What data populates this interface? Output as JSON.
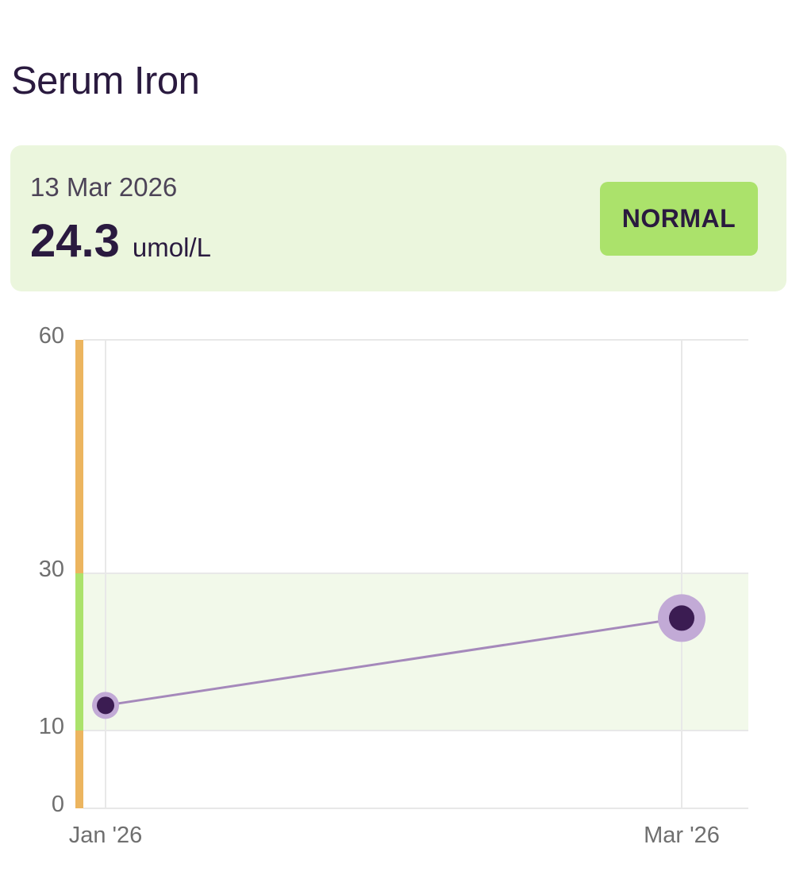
{
  "header": {
    "title": "Serum Iron"
  },
  "latest": {
    "date": "13 Mar 2026",
    "value": "24.3",
    "unit": "umol/L",
    "status": "NORMAL"
  },
  "colors": {
    "normal_band": "#f2f9ea",
    "normal_bar": "#abe26b",
    "out_of_range_bar": "#ecb55f",
    "line": "#a589bb",
    "point": "#3b1c52",
    "point_halo": "#c2aad6",
    "grid": "#e8e8e8"
  },
  "chart_data": {
    "type": "line",
    "y_ticks": [
      "60",
      "30",
      "10",
      "0"
    ],
    "x_ticks": [
      "Jan '26",
      "Mar '26"
    ],
    "ylim": [
      0,
      60
    ],
    "reference_range": [
      10,
      30
    ],
    "grid": true,
    "series": [
      {
        "points": [
          {
            "x": "Jan '26",
            "y": 13.2
          },
          {
            "x": "Mar '26",
            "y": 24.3
          }
        ]
      }
    ]
  }
}
